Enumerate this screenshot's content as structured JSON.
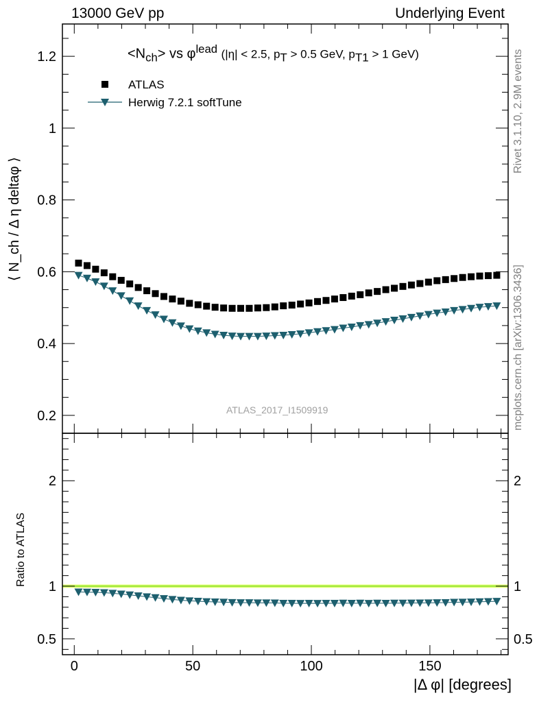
{
  "header": {
    "left": "13000 GeV pp",
    "right": "Underlying Event"
  },
  "side_labels": {
    "rivet": "Rivet 3.1.10,  2.9M events",
    "mcplots": "mcplots.cern.ch [arXiv:1306.3436]"
  },
  "watermark": "ATLAS_2017_I1509919",
  "plot_title": {
    "main": "<N",
    "main_sub": "ch",
    "vs": "> vs φ",
    "vs_sup": "lead",
    "cond_a": "(|η| < 2.5, p",
    "cond_a_sub": "T",
    "cond_b": " > 0.5 GeV, p",
    "cond_b_sub": "T1",
    "cond_c": " > 1 GeV)"
  },
  "colors": {
    "atlas": "#000000",
    "herwig": "#1d5f6e",
    "band_fill": "#ddff66",
    "band_line": "#88dd33"
  },
  "chart_data": [
    {
      "type": "scatter",
      "panel": "main",
      "xlabel": "|Δ φ| [degrees]",
      "ylabel": "⟨ N_ch / Δ η deltaφ ⟩",
      "xlim": [
        -5,
        183
      ],
      "ylim": [
        0.15,
        1.29
      ],
      "yticks": [
        0.2,
        0.4,
        0.6,
        0.8,
        1,
        1.2
      ],
      "ytick_labels": [
        "0.2",
        "0.4",
        "0.6",
        "0.8",
        "1",
        "1.2"
      ],
      "xticks": [
        0,
        50,
        100,
        150
      ],
      "xtick_labels": [
        "0",
        "50",
        "100",
        "150"
      ],
      "legend_position": "top-left",
      "x": [
        1.8,
        5.4,
        9,
        12.6,
        16.2,
        19.8,
        23.4,
        27,
        30.6,
        34.2,
        37.8,
        41.4,
        45,
        48.6,
        52.2,
        55.8,
        59.4,
        63,
        66.6,
        70.2,
        73.8,
        77.4,
        81,
        84.6,
        88.2,
        91.8,
        95.4,
        99,
        102.6,
        106.2,
        109.8,
        113.4,
        117,
        120.6,
        124.2,
        127.8,
        131.4,
        135,
        138.6,
        142.2,
        145.8,
        149.4,
        153,
        156.6,
        160.2,
        163.8,
        167.4,
        171,
        174.6,
        178.2
      ],
      "series": [
        {
          "name": "ATLAS",
          "marker": "square",
          "values": [
            0.624,
            0.617,
            0.607,
            0.597,
            0.586,
            0.576,
            0.566,
            0.556,
            0.547,
            0.539,
            0.531,
            0.524,
            0.518,
            0.512,
            0.508,
            0.504,
            0.501,
            0.499,
            0.498,
            0.498,
            0.498,
            0.499,
            0.5,
            0.502,
            0.505,
            0.507,
            0.51,
            0.513,
            0.517,
            0.52,
            0.524,
            0.528,
            0.532,
            0.536,
            0.541,
            0.545,
            0.55,
            0.554,
            0.559,
            0.563,
            0.567,
            0.571,
            0.575,
            0.578,
            0.581,
            0.584,
            0.586,
            0.588,
            0.589,
            0.59
          ]
        },
        {
          "name": "Herwig 7.2.1 softTune",
          "marker": "triangle-down",
          "values": [
            0.59,
            0.582,
            0.572,
            0.56,
            0.547,
            0.533,
            0.519,
            0.505,
            0.492,
            0.48,
            0.468,
            0.458,
            0.449,
            0.441,
            0.435,
            0.43,
            0.426,
            0.423,
            0.421,
            0.42,
            0.42,
            0.42,
            0.421,
            0.422,
            0.423,
            0.425,
            0.427,
            0.43,
            0.433,
            0.436,
            0.439,
            0.443,
            0.446,
            0.45,
            0.453,
            0.457,
            0.461,
            0.465,
            0.469,
            0.473,
            0.477,
            0.481,
            0.485,
            0.488,
            0.492,
            0.495,
            0.498,
            0.501,
            0.503,
            0.505
          ]
        }
      ]
    },
    {
      "type": "scatter",
      "panel": "ratio",
      "xlabel": "|Δ φ| [degrees]",
      "ylabel": "Ratio to ATLAS",
      "xlim": [
        -5,
        183
      ],
      "ylim": [
        0.35,
        2.45
      ],
      "yticks": [
        0.5,
        1,
        2
      ],
      "ytick_labels": [
        "0.5",
        "1",
        "2"
      ],
      "xticks": [
        0,
        50,
        100,
        150
      ],
      "reference_band": [
        0.985,
        1.015
      ],
      "x": [
        1.8,
        5.4,
        9,
        12.6,
        16.2,
        19.8,
        23.4,
        27,
        30.6,
        34.2,
        37.8,
        41.4,
        45,
        48.6,
        52.2,
        55.8,
        59.4,
        63,
        66.6,
        70.2,
        73.8,
        77.4,
        81,
        84.6,
        88.2,
        91.8,
        95.4,
        99,
        102.6,
        106.2,
        109.8,
        113.4,
        117,
        120.6,
        124.2,
        127.8,
        131.4,
        135,
        138.6,
        142.2,
        145.8,
        149.4,
        153,
        156.6,
        160.2,
        163.8,
        167.4,
        171,
        174.6,
        178.2
      ],
      "series": [
        {
          "name": "Herwig 7.2.1 softTune",
          "marker": "triangle-down",
          "values": [
            0.945,
            0.943,
            0.942,
            0.938,
            0.933,
            0.925,
            0.917,
            0.908,
            0.899,
            0.891,
            0.882,
            0.874,
            0.867,
            0.861,
            0.857,
            0.853,
            0.851,
            0.848,
            0.845,
            0.843,
            0.843,
            0.842,
            0.842,
            0.841,
            0.838,
            0.838,
            0.837,
            0.838,
            0.837,
            0.838,
            0.838,
            0.839,
            0.838,
            0.839,
            0.837,
            0.839,
            0.838,
            0.839,
            0.839,
            0.84,
            0.841,
            0.842,
            0.843,
            0.844,
            0.847,
            0.848,
            0.85,
            0.852,
            0.854,
            0.856
          ]
        }
      ]
    }
  ]
}
